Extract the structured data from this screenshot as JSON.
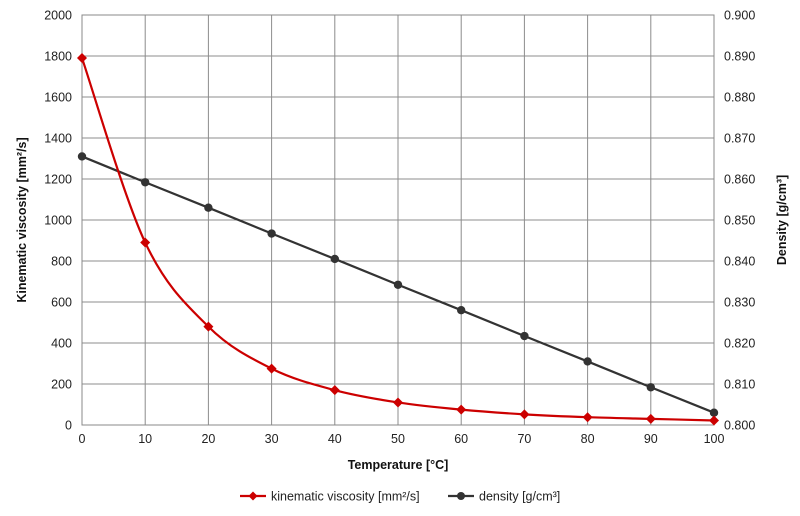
{
  "chart_data": {
    "type": "line",
    "xlabel": "Temperature  [°C]",
    "ylabel_left": "Kinematic viscosity  [mm²/s]",
    "ylabel_right": "Density  [g/cm³]",
    "xlim": [
      0,
      100
    ],
    "x_ticks": [
      0,
      10,
      20,
      30,
      40,
      50,
      60,
      70,
      80,
      90,
      100
    ],
    "ylim_left": [
      0,
      2000
    ],
    "y_left_ticks": [
      0,
      200,
      400,
      600,
      800,
      1000,
      1200,
      1400,
      1600,
      1800,
      2000
    ],
    "ylim_right": [
      0.8,
      0.9
    ],
    "y_right_ticks": [
      "0.800",
      "0.810",
      "0.820",
      "0.830",
      "0.840",
      "0.850",
      "0.860",
      "0.870",
      "0.880",
      "0.890",
      "0.900"
    ],
    "grid": true,
    "legend_position": "bottom",
    "x": [
      0,
      10,
      20,
      30,
      40,
      50,
      60,
      70,
      80,
      90,
      100
    ],
    "series": [
      {
        "name": "kinematic viscosity [mm²/s]",
        "axis": "left",
        "color": "#cc0000",
        "marker": "diamond",
        "smooth": true,
        "values": [
          1790,
          890,
          480,
          275,
          170,
          110,
          75,
          52,
          38,
          30,
          22
        ]
      },
      {
        "name": "density [g/cm³]",
        "axis": "right",
        "color": "#333333",
        "marker": "circle",
        "smooth": false,
        "values": [
          0.8655,
          0.8592,
          0.853,
          0.8467,
          0.8405,
          0.8342,
          0.828,
          0.8217,
          0.8155,
          0.8092,
          0.803
        ]
      }
    ]
  }
}
